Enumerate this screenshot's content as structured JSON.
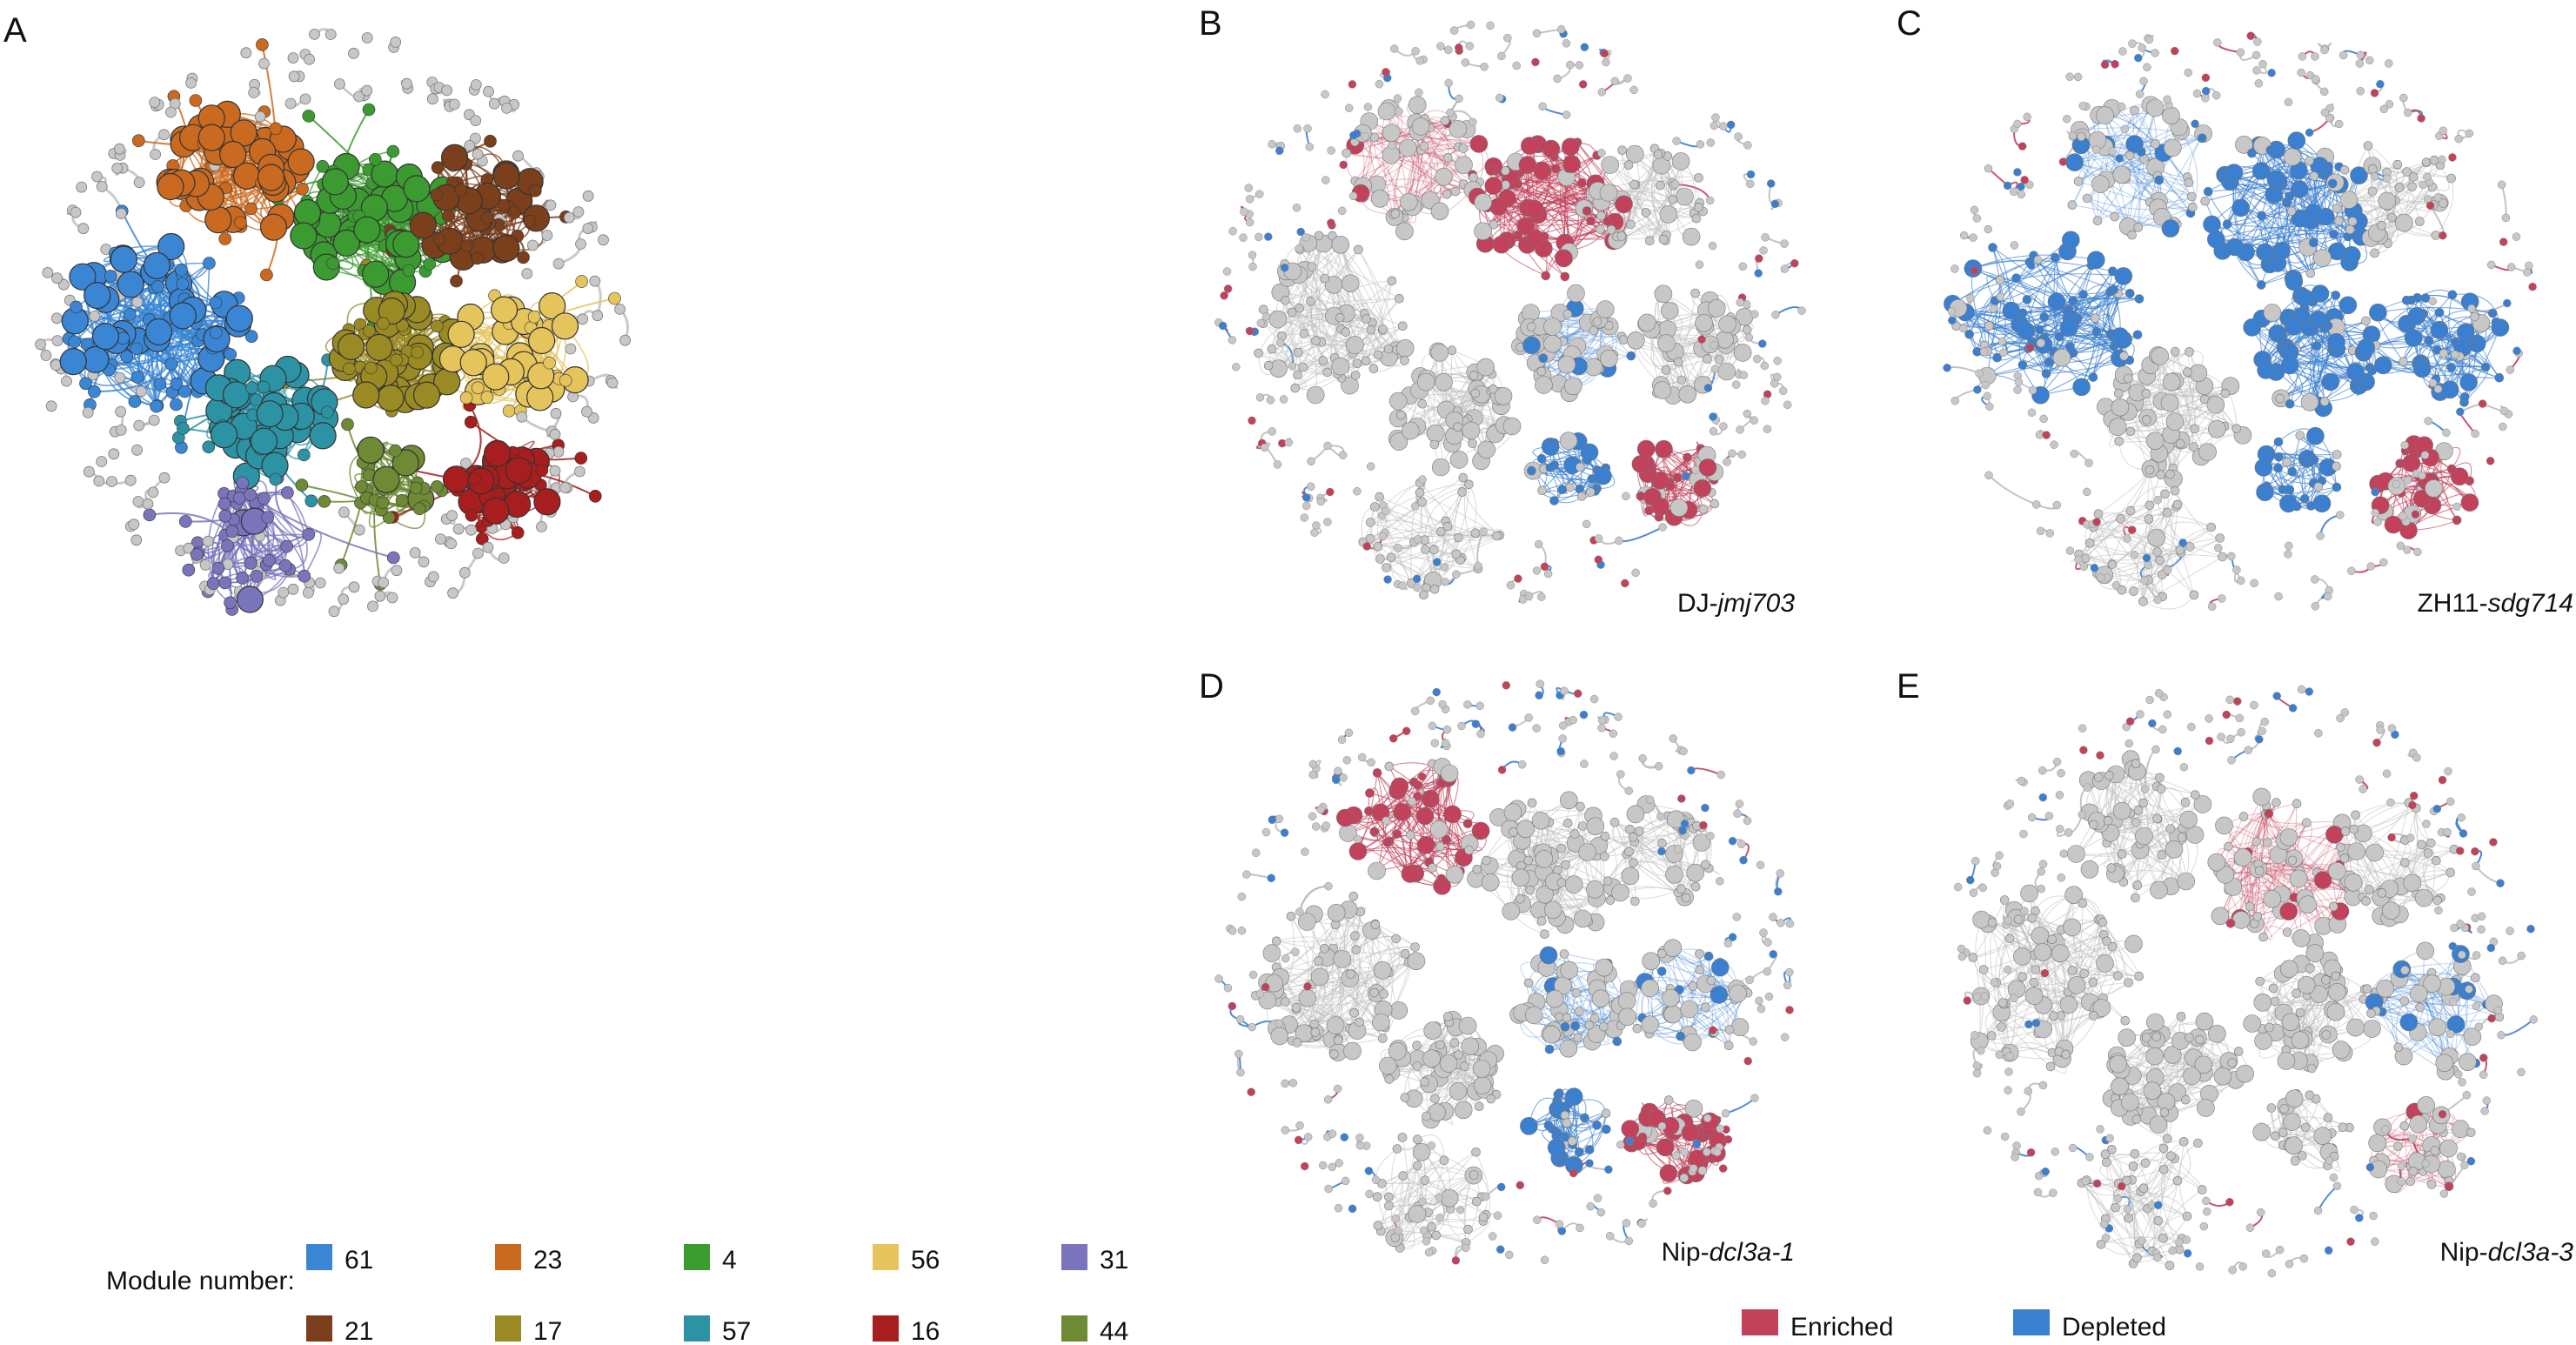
{
  "figure": {
    "colors": {
      "background": "#ffffff",
      "neutral_node": "#c7c7c7",
      "neutral_stroke": "#7a7a7a",
      "neutral_edge": "#bdbdbd",
      "enriched": "#c2415b",
      "depleted": "#3a7fd0"
    },
    "panels": {
      "A": {
        "label": "A",
        "modules": [
          {
            "number": "61",
            "color": "#3a86d4"
          },
          {
            "number": "23",
            "color": "#c96a20"
          },
          {
            "number": "4",
            "color": "#3b9b30"
          },
          {
            "number": "56",
            "color": "#e5c45c"
          },
          {
            "number": "31",
            "color": "#7a74bd"
          },
          {
            "number": "21",
            "color": "#7b3f1c"
          },
          {
            "number": "17",
            "color": "#9a8a24"
          },
          {
            "number": "57",
            "color": "#2c93a5"
          },
          {
            "number": "16",
            "color": "#a81d1d"
          },
          {
            "number": "44",
            "color": "#6e8a34"
          }
        ]
      },
      "B": {
        "label": "B",
        "strain_prefix": "DJ-",
        "mutant": "jmj703"
      },
      "C": {
        "label": "C",
        "strain_prefix": "ZH11-",
        "mutant": "sdg714"
      },
      "D": {
        "label": "D",
        "strain_prefix": "Nip-",
        "mutant": "dcl3a-1"
      },
      "E": {
        "label": "E",
        "strain_prefix": "Nip-",
        "mutant": "dcl3a-3"
      }
    },
    "module_legend": {
      "title": "Module number:"
    },
    "status_legend": {
      "enriched_label": "Enriched",
      "depleted_label": "Depleted"
    }
  }
}
